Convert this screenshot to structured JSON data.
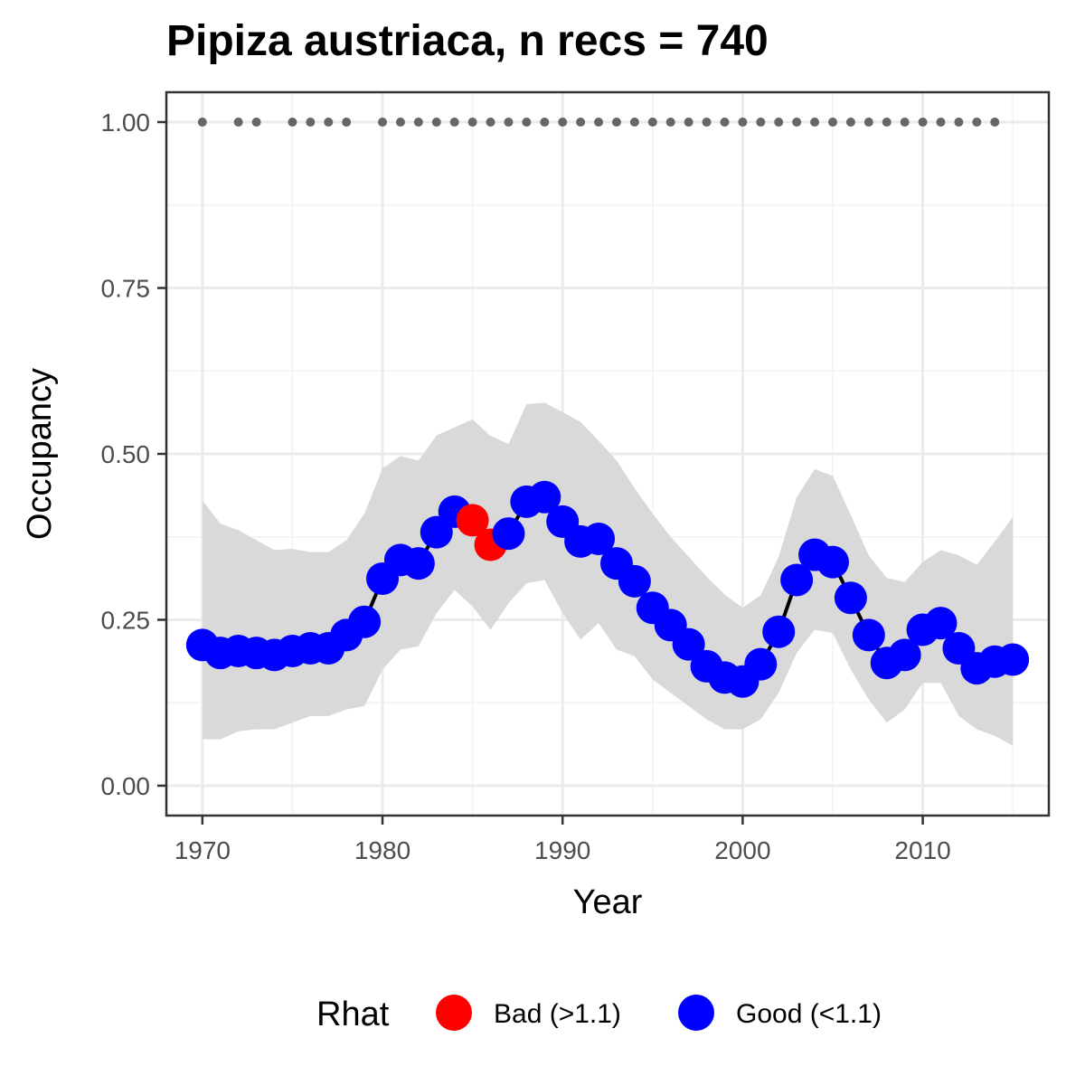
{
  "chart_data": {
    "type": "line",
    "title": "Pipiza austriaca, n recs = 740",
    "xlabel": "Year",
    "ylabel": "Occupancy",
    "xlim": [
      1968,
      2017
    ],
    "ylim": [
      -0.045,
      1.045
    ],
    "x_ticks": [
      1970,
      1980,
      1990,
      2000,
      2010
    ],
    "x_tick_labels": [
      "1970",
      "1980",
      "1990",
      "2000",
      "2010"
    ],
    "y_ticks": [
      0,
      0.25,
      0.5,
      0.75,
      1.0
    ],
    "y_tick_labels": [
      "0.00",
      "0.25",
      "0.50",
      "0.75",
      "1.00"
    ],
    "grid": true,
    "legend_position": "bottom",
    "legend": {
      "title": "Rhat",
      "items": [
        {
          "label": "Bad (>1.1)",
          "color": "#ff0000"
        },
        {
          "label": "Good (<1.1)",
          "color": "#0000ff"
        }
      ]
    },
    "colors": {
      "good": "#0000ff",
      "bad": "#ff0000",
      "ribbon": "#d9d9d9",
      "line": "#000000",
      "record_dots": "#666666"
    },
    "series": [
      {
        "years": [
          1970,
          1971,
          1972,
          1973,
          1974,
          1975,
          1976,
          1977,
          1978,
          1979,
          1980,
          1981,
          1982,
          1983,
          1984,
          1985,
          1986,
          1987,
          1988,
          1989,
          1990,
          1991,
          1992,
          1993,
          1994,
          1995,
          1996,
          1997,
          1998,
          1999,
          2000,
          2001,
          2002,
          2003,
          2004,
          2005,
          2006,
          2007,
          2008,
          2009,
          2010,
          2011,
          2012,
          2013,
          2014,
          2015
        ],
        "occupancy": [
          0.212,
          0.2,
          0.203,
          0.2,
          0.197,
          0.203,
          0.207,
          0.207,
          0.227,
          0.247,
          0.312,
          0.34,
          0.335,
          0.382,
          0.413,
          0.4,
          0.363,
          0.38,
          0.428,
          0.435,
          0.398,
          0.368,
          0.372,
          0.335,
          0.308,
          0.268,
          0.242,
          0.213,
          0.18,
          0.163,
          0.157,
          0.183,
          0.232,
          0.31,
          0.348,
          0.337,
          0.283,
          0.227,
          0.185,
          0.197,
          0.235,
          0.245,
          0.207,
          0.177,
          0.187,
          0.19
        ],
        "lower": [
          0.07,
          0.07,
          0.082,
          0.085,
          0.085,
          0.095,
          0.105,
          0.105,
          0.115,
          0.12,
          0.175,
          0.205,
          0.21,
          0.26,
          0.295,
          0.27,
          0.235,
          0.275,
          0.305,
          0.31,
          0.26,
          0.22,
          0.245,
          0.205,
          0.195,
          0.16,
          0.14,
          0.12,
          0.1,
          0.085,
          0.085,
          0.1,
          0.14,
          0.2,
          0.235,
          0.23,
          0.175,
          0.13,
          0.095,
          0.115,
          0.155,
          0.155,
          0.105,
          0.085,
          0.075,
          0.06
        ],
        "upper": [
          0.43,
          0.395,
          0.385,
          0.37,
          0.355,
          0.357,
          0.352,
          0.352,
          0.37,
          0.41,
          0.478,
          0.497,
          0.49,
          0.528,
          0.54,
          0.552,
          0.527,
          0.515,
          0.575,
          0.577,
          0.563,
          0.548,
          0.52,
          0.49,
          0.448,
          0.41,
          0.375,
          0.345,
          0.315,
          0.288,
          0.268,
          0.287,
          0.345,
          0.435,
          0.477,
          0.467,
          0.408,
          0.347,
          0.313,
          0.307,
          0.337,
          0.355,
          0.347,
          0.333,
          0.368,
          0.405
        ],
        "rhat": [
          "good",
          "good",
          "good",
          "good",
          "good",
          "good",
          "good",
          "good",
          "good",
          "good",
          "good",
          "good",
          "good",
          "good",
          "good",
          "bad",
          "bad",
          "good",
          "good",
          "good",
          "good",
          "good",
          "good",
          "good",
          "good",
          "good",
          "good",
          "good",
          "good",
          "good",
          "good",
          "good",
          "good",
          "good",
          "good",
          "good",
          "good",
          "good",
          "good",
          "good",
          "good",
          "good",
          "good",
          "good",
          "good",
          "good"
        ]
      }
    ],
    "record_years": [
      1970,
      1972,
      1973,
      1975,
      1976,
      1977,
      1978,
      1980,
      1981,
      1982,
      1983,
      1984,
      1985,
      1986,
      1987,
      1988,
      1989,
      1990,
      1991,
      1992,
      1993,
      1994,
      1995,
      1996,
      1997,
      1998,
      1999,
      2000,
      2001,
      2002,
      2003,
      2004,
      2005,
      2006,
      2007,
      2008,
      2009,
      2010,
      2011,
      2012,
      2013,
      2014
    ],
    "record_dots_y": 1.0
  }
}
